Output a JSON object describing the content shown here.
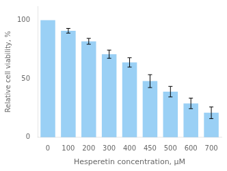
{
  "chart_data": {
    "type": "bar",
    "categories": [
      "0",
      "100",
      "200",
      "300",
      "400",
      "450",
      "500",
      "600",
      "700"
    ],
    "values": [
      100,
      91,
      82,
      71,
      64,
      48,
      39,
      29,
      21
    ],
    "errors": [
      0,
      2.0,
      2.5,
      3.5,
      4.0,
      5.5,
      4.5,
      4.5,
      5.0
    ],
    "xlabel": "Hesperetin concentration, μM",
    "ylabel": "Relative cell viability, %",
    "ylim": [
      0,
      112
    ],
    "yticks": [
      0,
      50,
      100
    ],
    "grid": false
  }
}
